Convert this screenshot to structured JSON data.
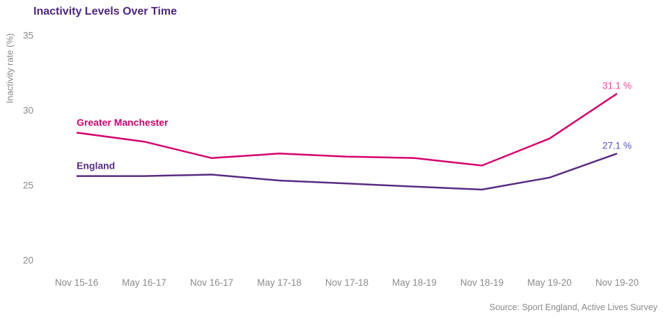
{
  "title": "Inactivity Levels Over Time",
  "source_note": "Source: Sport England, Active Lives Survey",
  "colors": {
    "title": "#4F2683",
    "axis_text": "#8A8A8A",
    "greater_manchester": "#D6006D",
    "england": "#582C83",
    "gm_end_label": "#F0439B",
    "england_end_label": "#5352C1",
    "background": "#FFFFFF"
  },
  "chart_data": {
    "type": "line",
    "title": "Inactivity Levels Over Time",
    "xlabel": "",
    "ylabel": "Inactivity rate (%)",
    "ylim": [
      20,
      35
    ],
    "y_ticks": [
      35,
      30,
      25,
      20
    ],
    "grid": false,
    "legend_position": "inline-labels-at-line-start",
    "categories": [
      "Nov 15-16",
      "May 16-17",
      "Nov 16-17",
      "May 17-18",
      "Nov 17-18",
      "May 18-19",
      "Nov 18-19",
      "May 19-20",
      "Nov 19-20"
    ],
    "series": [
      {
        "name": "Greater Manchester",
        "color": "#D6006D",
        "values": [
          28.5,
          27.9,
          26.8,
          27.1,
          26.9,
          26.8,
          26.3,
          28.1,
          31.1
        ],
        "end_label": "31.1 %",
        "end_label_color": "#F0439B"
      },
      {
        "name": "England",
        "color": "#582C83",
        "values": [
          25.6,
          25.6,
          25.7,
          25.3,
          25.1,
          24.9,
          24.7,
          25.5,
          27.1
        ],
        "end_label": "27.1 %",
        "end_label_color": "#5352C1"
      }
    ]
  }
}
